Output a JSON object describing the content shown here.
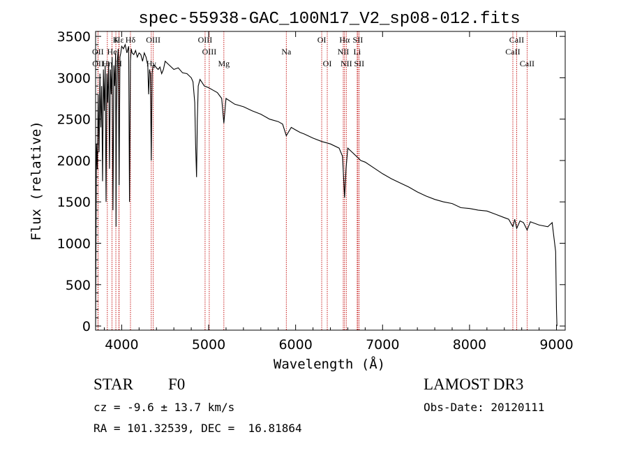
{
  "chart_data": {
    "type": "line",
    "title": "spec-55938-GAC_100N17_V2_sp08-012.fits",
    "xlabel": "Wavelength (Å)",
    "ylabel": "Flux (relative)",
    "xlim": [
      3700,
      9100
    ],
    "ylim": [
      -50,
      3560
    ],
    "xticks": [
      4000,
      5000,
      6000,
      7000,
      8000,
      9000
    ],
    "xtick_labels": [
      "4000",
      "5000",
      "6000",
      "7000",
      "8000",
      "9000"
    ],
    "yticks": [
      0,
      500,
      1000,
      1500,
      2000,
      2500,
      3000,
      3500
    ],
    "ytick_labels": [
      "0",
      "500",
      "1000",
      "1500",
      "2000",
      "2500",
      "3000",
      "3500"
    ],
    "spectrum": {
      "x": [
        3700,
        3710,
        3720,
        3730,
        3740,
        3750,
        3760,
        3770,
        3780,
        3790,
        3800,
        3810,
        3820,
        3830,
        3840,
        3850,
        3860,
        3870,
        3880,
        3890,
        3900,
        3910,
        3920,
        3930,
        3935,
        3940,
        3950,
        3960,
        3970,
        3980,
        3990,
        4000,
        4020,
        4040,
        4060,
        4080,
        4090,
        4100,
        4110,
        4120,
        4140,
        4160,
        4180,
        4200,
        4220,
        4240,
        4260,
        4280,
        4300,
        4310,
        4320,
        4330,
        4340,
        4350,
        4360,
        4380,
        4400,
        4420,
        4440,
        4460,
        4480,
        4500,
        4550,
        4600,
        4650,
        4700,
        4750,
        4800,
        4820,
        4840,
        4850,
        4861,
        4870,
        4880,
        4900,
        4920,
        4950,
        5000,
        5050,
        5100,
        5150,
        5175,
        5200,
        5300,
        5400,
        5500,
        5600,
        5700,
        5800,
        5850,
        5893,
        5950,
        6000,
        6050,
        6100,
        6200,
        6300,
        6400,
        6500,
        6540,
        6563,
        6580,
        6600,
        6650,
        6700,
        6750,
        6800,
        6900,
        7000,
        7100,
        7200,
        7300,
        7400,
        7500,
        7600,
        7700,
        7800,
        7900,
        8000,
        8100,
        8200,
        8300,
        8400,
        8450,
        8498,
        8520,
        8542,
        8580,
        8620,
        8662,
        8700,
        8800,
        8900,
        8950,
        8990,
        9000,
        9005
      ],
      "y": [
        0,
        2200,
        1900,
        2800,
        2100,
        3050,
        2400,
        2900,
        1750,
        3100,
        2600,
        3150,
        1500,
        3050,
        2700,
        3200,
        1900,
        3100,
        2800,
        3250,
        1400,
        3150,
        2900,
        3300,
        1200,
        2600,
        3200,
        3350,
        1700,
        3250,
        3300,
        3380,
        3350,
        3400,
        3300,
        3380,
        1500,
        3200,
        3350,
        3300,
        3280,
        3330,
        3250,
        3300,
        3280,
        3200,
        3300,
        3250,
        3150,
        2800,
        3100,
        3050,
        2000,
        3050,
        3150,
        3150,
        3120,
        3100,
        3130,
        3050,
        3100,
        3200,
        3150,
        3100,
        3120,
        3060,
        3050,
        3000,
        2950,
        2700,
        2200,
        1800,
        2500,
        2900,
        2980,
        2950,
        2900,
        2880,
        2850,
        2820,
        2750,
        2450,
        2750,
        2680,
        2650,
        2600,
        2560,
        2500,
        2470,
        2440,
        2300,
        2400,
        2370,
        2340,
        2320,
        2270,
        2230,
        2200,
        2150,
        2050,
        1550,
        1900,
        2150,
        2100,
        2050,
        2000,
        1980,
        1910,
        1840,
        1780,
        1730,
        1680,
        1620,
        1570,
        1530,
        1500,
        1480,
        1430,
        1420,
        1400,
        1390,
        1350,
        1310,
        1290,
        1200,
        1290,
        1180,
        1270,
        1250,
        1160,
        1260,
        1220,
        1200,
        1250,
        900,
        200,
        0
      ]
    },
    "emission_lines": [
      {
        "name": "Hε",
        "x": 3970,
        "row": 1
      },
      {
        "name": "K",
        "x": 3933,
        "row": 1
      },
      {
        "name": "Hδ",
        "x": 4101,
        "row": 1
      },
      {
        "name": "OIII",
        "x": 4363,
        "row": 1
      },
      {
        "name": "OIII",
        "x": 4959,
        "row": 1
      },
      {
        "name": "OI",
        "x": 6300,
        "row": 1
      },
      {
        "name": "Hα",
        "x": 6563,
        "row": 1
      },
      {
        "name": "SII",
        "x": 6716,
        "row": 1
      },
      {
        "name": "CaII",
        "x": 8542,
        "row": 1
      },
      {
        "name": "OII",
        "x": 3727,
        "row": 2
      },
      {
        "name": "He",
        "x": 3889,
        "row": 2
      },
      {
        "name": "OIII",
        "x": 5007,
        "row": 2
      },
      {
        "name": "Na",
        "x": 5893,
        "row": 2
      },
      {
        "name": "NII",
        "x": 6548,
        "row": 2
      },
      {
        "name": "Li",
        "x": 6708,
        "row": 2
      },
      {
        "name": "CaII",
        "x": 8498,
        "row": 2
      },
      {
        "name": "OII",
        "x": 3729,
        "row": 3
      },
      {
        "name": "Hη",
        "x": 3835,
        "row": 3
      },
      {
        "name": "H",
        "x": 3968,
        "row": 3
      },
      {
        "name": "Hγ",
        "x": 4340,
        "row": 3
      },
      {
        "name": "Mg",
        "x": 5175,
        "row": 3
      },
      {
        "name": "OI",
        "x": 6364,
        "row": 3
      },
      {
        "name": "NII",
        "x": 6583,
        "row": 3
      },
      {
        "name": "SII",
        "x": 6731,
        "row": 3
      },
      {
        "name": "CaII",
        "x": 8662,
        "row": 3
      }
    ]
  },
  "info": {
    "object_type": "STAR",
    "subclass": "F0",
    "survey": "LAMOST DR3",
    "redshift": "cz = -9.6 ± 13.7 km/s",
    "obs_date": "Obs-Date: 20120111",
    "coords": "RA = 101.32539, DEC =  16.81864"
  }
}
